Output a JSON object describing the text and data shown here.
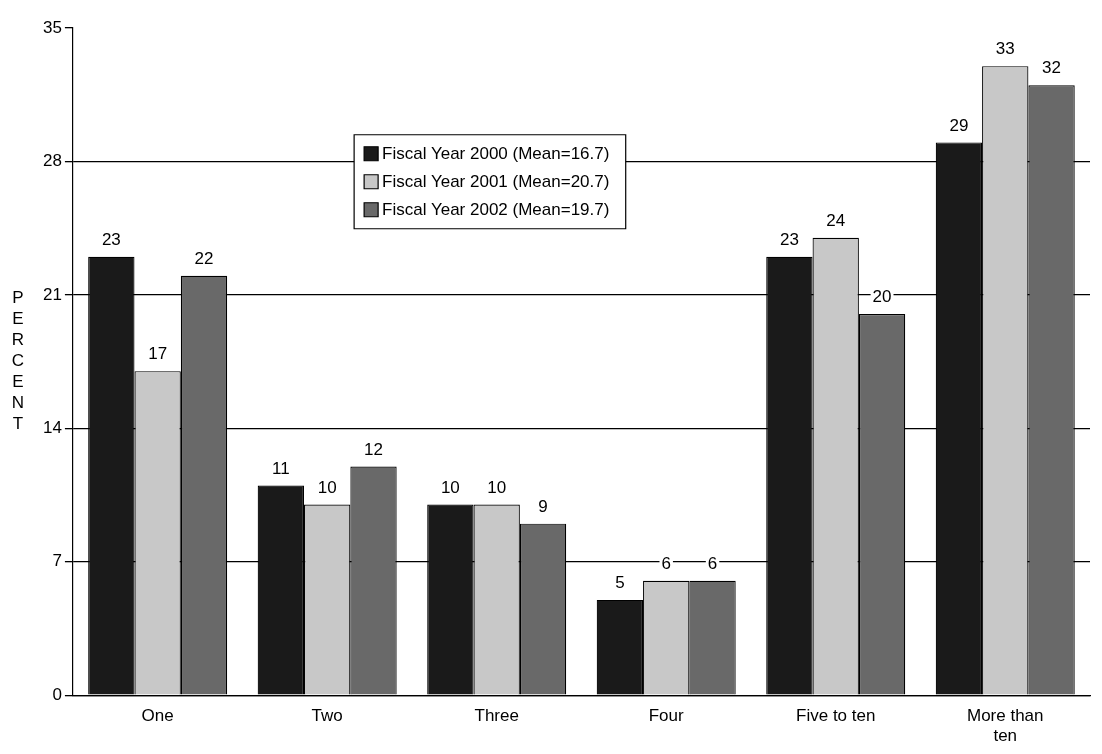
{
  "chart_data": {
    "type": "bar",
    "ylabel": "PERCENT",
    "categories": [
      "One",
      "Two",
      "Three",
      "Four",
      "Five to ten",
      "More than ten"
    ],
    "series": [
      {
        "name": "Fiscal Year 2000 (Mean=16.7)",
        "color": "#1a1a1a",
        "values": [
          23,
          11,
          10,
          5,
          23,
          29
        ]
      },
      {
        "name": "Fiscal Year 2001 (Mean=20.7)",
        "color": "#c8c8c8",
        "values": [
          17,
          10,
          10,
          6,
          24,
          33
        ]
      },
      {
        "name": "Fiscal Year 2002 (Mean=19.7)",
        "color": "#696969",
        "values": [
          22,
          12,
          9,
          6,
          20,
          32
        ]
      }
    ],
    "ylim": [
      0,
      35
    ],
    "yticks": [
      0,
      7,
      14,
      21,
      28,
      35
    ],
    "grid": "y",
    "legend": "top",
    "data_labels": true
  }
}
